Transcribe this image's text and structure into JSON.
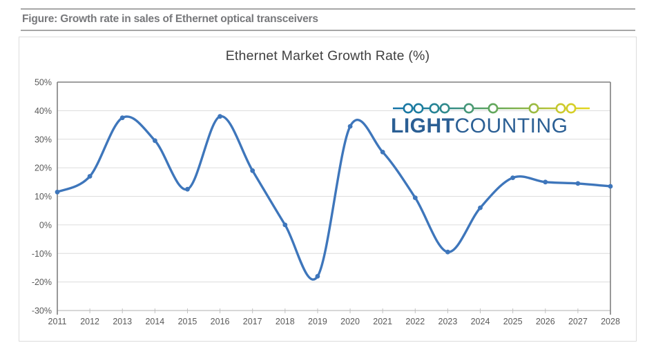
{
  "figure": {
    "caption": "Figure: Growth rate in sales of Ethernet optical transceivers"
  },
  "chart": {
    "title": "Ethernet Market Growth Rate (%)"
  },
  "logo": {
    "word1": "LIGHT",
    "word2": "COUNTING",
    "bead_colors": [
      "#1472A8",
      "#1E7F9D",
      "#3B9180",
      "#62A75C",
      "#8FB747",
      "#CBC92E",
      "#EADA1C"
    ]
  },
  "colors": {
    "caption": "#77787B",
    "rule": "#A6A6A6",
    "title": "#404040",
    "label": "#595959",
    "gridline": "#DCDCDC",
    "border": "#7F7F7F",
    "axis": "#BFBFBF",
    "line": "#3E76BB",
    "logo_text": "#2B5F94",
    "card_border": "#DCDCDC"
  },
  "chart_data": {
    "type": "line",
    "title": "Ethernet Market Growth Rate (%)",
    "categories": [
      "2011",
      "2012",
      "2013",
      "2014",
      "2015",
      "2016",
      "2017",
      "2018",
      "2019",
      "2020",
      "2021",
      "2022",
      "2023",
      "2024",
      "2025",
      "2026",
      "2027",
      "2028"
    ],
    "values": [
      11.5,
      17,
      37.5,
      29.5,
      12.5,
      38,
      19,
      0,
      -18,
      34.5,
      25.5,
      9.5,
      -9.5,
      6,
      16.5,
      15,
      14.5,
      13.5
    ],
    "ylim": [
      -30,
      50
    ],
    "ytick_step": 10,
    "ytick_labels": [
      "50%",
      "40%",
      "30%",
      "20%",
      "10%",
      "0%",
      "-10%",
      "-20%",
      "-30%"
    ],
    "ylabel": "",
    "xlabel": "",
    "grid": true,
    "smooth": true,
    "markers": true,
    "legend": "none",
    "line_color": "#3E76BB"
  }
}
